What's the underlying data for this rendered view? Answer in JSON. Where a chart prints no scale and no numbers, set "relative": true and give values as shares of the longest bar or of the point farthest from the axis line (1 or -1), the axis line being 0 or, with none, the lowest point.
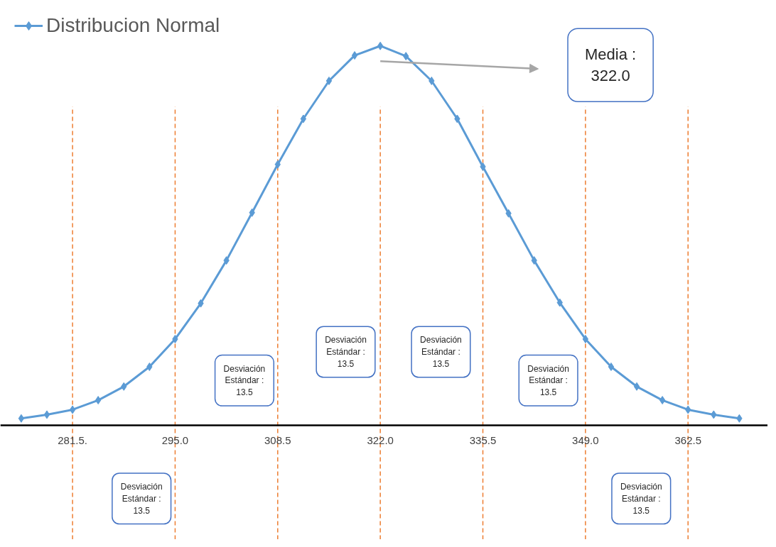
{
  "chart_data": {
    "type": "line",
    "relative": true,
    "marker": "diamond",
    "legend": "top left",
    "grid": false,
    "x": [
      274.75,
      278.125,
      281.5,
      284.875,
      288.25,
      291.625,
      295.0,
      298.375,
      301.75,
      305.125,
      308.5,
      311.875,
      315.25,
      318.625,
      322.0,
      325.375,
      328.75,
      332.125,
      335.5,
      338.875,
      342.25,
      345.625,
      349.0,
      352.375,
      355.75,
      359.125,
      362.5,
      365.875,
      369.25
    ],
    "series": [
      {
        "name": "Distribucion Normal",
        "color": "#5b9bd5",
        "values": [
          0.019,
          0.029,
          0.042,
          0.067,
          0.103,
          0.155,
          0.228,
          0.322,
          0.435,
          0.561,
          0.688,
          0.808,
          0.908,
          0.975,
          1,
          0.973,
          0.908,
          0.808,
          0.682,
          0.559,
          0.435,
          0.324,
          0.228,
          0.155,
          0.103,
          0.067,
          0.042,
          0.029,
          0.019
        ]
      }
    ],
    "xlim": [
      272,
      373
    ],
    "xticks": [
      {
        "value": 281.5,
        "label": "281.5."
      },
      {
        "value": 295.0,
        "label": "295.0"
      },
      {
        "value": 308.5,
        "label": "308.5"
      },
      {
        "value": 322.0,
        "label": "322.0"
      },
      {
        "value": 335.5,
        "label": "335.5"
      },
      {
        "value": 349.0,
        "label": "349.0"
      },
      {
        "value": 362.5,
        "label": "362.5"
      }
    ],
    "ref_lines": [
      {
        "axis": "x",
        "value": 281.5,
        "color": "#ed7d31",
        "line_style": "dashed"
      },
      {
        "axis": "x",
        "value": 295.0,
        "color": "#ed7d31",
        "line_style": "dashed"
      },
      {
        "axis": "x",
        "value": 308.5,
        "color": "#ed7d31",
        "line_style": "dashed"
      },
      {
        "axis": "x",
        "value": 322.0,
        "color": "#ed7d31",
        "line_style": "dashed"
      },
      {
        "axis": "x",
        "value": 335.5,
        "color": "#ed7d31",
        "line_style": "dashed"
      },
      {
        "axis": "x",
        "value": 349.0,
        "color": "#ed7d31",
        "line_style": "dashed"
      },
      {
        "axis": "x",
        "value": 362.5,
        "color": "#ed7d31",
        "line_style": "dashed"
      }
    ],
    "annotations": [
      "Media :\n322.0",
      "Desviación\nEstándar :\n13.5",
      "Desviación\nEstándar :\n13.5",
      "Desviación\nEstándar :\n13.5",
      "Desviación\nEstándar :\n13.5",
      "Desviación\nEstándar :\n13.5",
      "Desviación\nEstándar :\n13.5"
    ]
  }
}
